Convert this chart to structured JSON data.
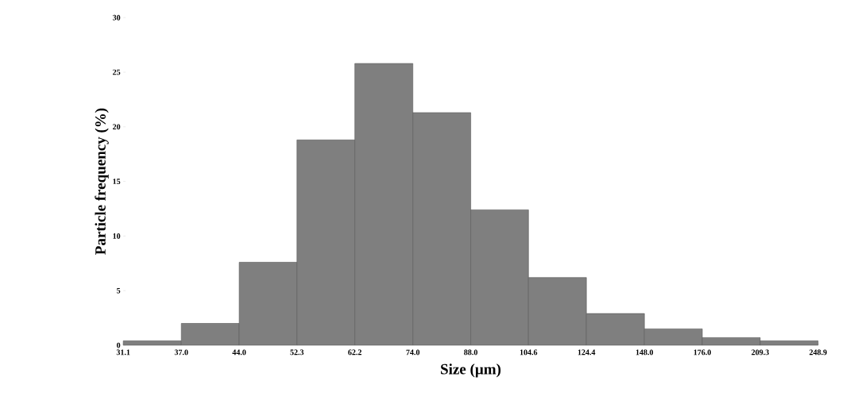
{
  "chart_data": {
    "type": "histogram",
    "xlabel": "Size (µm)",
    "ylabel": "Particle frequency (%)",
    "bins": [
      31.1,
      37.0,
      44.0,
      52.3,
      62.2,
      74.0,
      88.0,
      104.6,
      124.4,
      148.0,
      176.0,
      209.3,
      248.9
    ],
    "values": [
      0.4,
      2.0,
      7.6,
      18.8,
      25.8,
      21.3,
      12.4,
      6.2,
      2.9,
      1.5,
      0.7,
      0.4
    ],
    "color": "#7f7f7f",
    "log": "x",
    "xlim": [
      31.1,
      248.9
    ],
    "xticks": [
      31.1,
      {
        "value": 37.0,
        "label": "37.0"
      },
      {
        "value": 44.0,
        "label": "44.0"
      },
      52.3,
      62.2,
      {
        "value": 74.0,
        "label": "74.0"
      },
      {
        "value": 88.0,
        "label": "88.0"
      },
      104.6,
      124.4,
      {
        "value": 148.0,
        "label": "148.0"
      },
      {
        "value": 176.0,
        "label": "176.0"
      },
      209.3,
      248.9
    ],
    "ylim": [
      0,
      30
    ],
    "yticks": [
      0,
      5,
      10,
      15,
      20,
      25,
      30
    ]
  }
}
